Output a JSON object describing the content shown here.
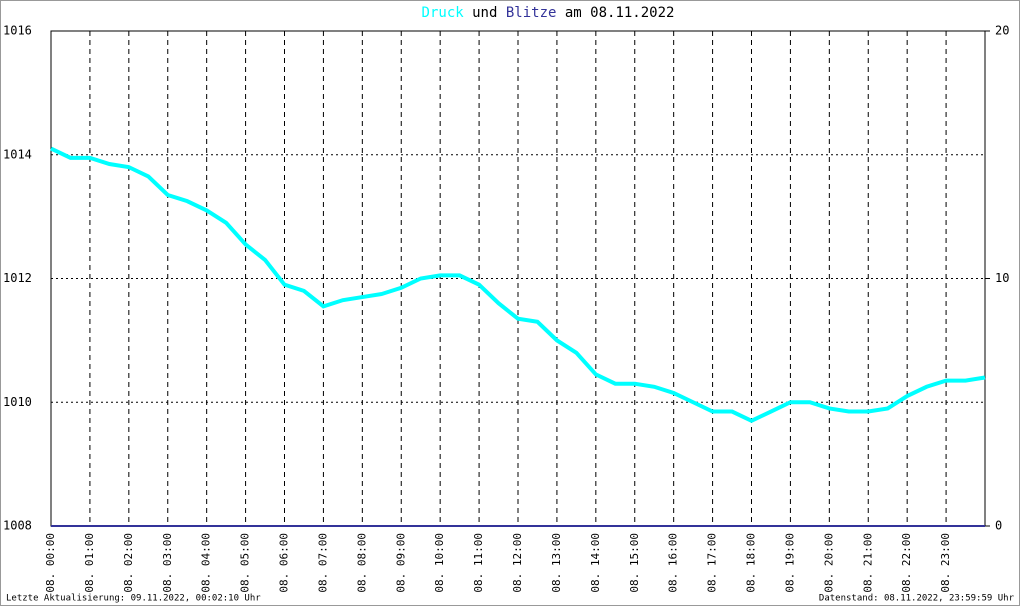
{
  "chart_data": {
    "type": "line",
    "title_parts": [
      "und",
      "am 08.11.2022"
    ],
    "xlim": [
      0,
      24
    ],
    "xticks": [
      {
        "value": 0,
        "label": "08. 00:00"
      },
      {
        "value": 1,
        "label": "08. 01:00"
      },
      {
        "value": 2,
        "label": "08. 02:00"
      },
      {
        "value": 3,
        "label": "08. 03:00"
      },
      {
        "value": 4,
        "label": "08. 04:00"
      },
      {
        "value": 5,
        "label": "08. 05:00"
      },
      {
        "value": 6,
        "label": "08. 06:00"
      },
      {
        "value": 7,
        "label": "08. 07:00"
      },
      {
        "value": 8,
        "label": "08. 08:00"
      },
      {
        "value": 9,
        "label": "08. 09:00"
      },
      {
        "value": 10,
        "label": "08. 10:00"
      },
      {
        "value": 11,
        "label": "08. 11:00"
      },
      {
        "value": 12,
        "label": "08. 12:00"
      },
      {
        "value": 13,
        "label": "08. 13:00"
      },
      {
        "value": 14,
        "label": "08. 14:00"
      },
      {
        "value": 15,
        "label": "08. 15:00"
      },
      {
        "value": 16,
        "label": "08. 16:00"
      },
      {
        "value": 17,
        "label": "08. 17:00"
      },
      {
        "value": 18,
        "label": "08. 18:00"
      },
      {
        "value": 19,
        "label": "08. 19:00"
      },
      {
        "value": 20,
        "label": "08. 20:00"
      },
      {
        "value": 21,
        "label": "08. 21:00"
      },
      {
        "value": 22,
        "label": "08. 22:00"
      },
      {
        "value": 23,
        "label": "08. 23:00"
      }
    ],
    "ylim": [
      1008,
      1016
    ],
    "yticks": [
      1008,
      1010,
      1012,
      1014,
      1016
    ],
    "y2lim": [
      0,
      20
    ],
    "y2ticks": [
      0,
      10,
      20
    ],
    "grid": true,
    "series": [
      {
        "name": "Druck",
        "color": "#00ffff",
        "x": [
          0,
          0.5,
          1,
          1.5,
          2,
          2.5,
          3,
          3.5,
          4,
          4.5,
          5,
          5.5,
          6,
          6.5,
          7,
          7.5,
          8,
          8.5,
          9,
          9.5,
          10,
          10.5,
          11,
          11.5,
          12,
          12.5,
          13,
          13.5,
          14,
          14.5,
          15,
          15.5,
          16,
          16.5,
          17,
          17.5,
          18,
          18.5,
          19,
          19.5,
          20,
          20.5,
          21,
          21.5,
          22,
          22.5,
          23,
          23.5,
          24
        ],
        "values": [
          1014.1,
          1013.95,
          1013.95,
          1013.85,
          1013.8,
          1013.65,
          1013.35,
          1013.25,
          1013.1,
          1012.9,
          1012.55,
          1012.3,
          1011.9,
          1011.8,
          1011.55,
          1011.65,
          1011.7,
          1011.75,
          1011.85,
          1012.0,
          1012.05,
          1012.05,
          1011.9,
          1011.6,
          1011.35,
          1011.3,
          1011.0,
          1010.8,
          1010.45,
          1010.3,
          1010.3,
          1010.25,
          1010.15,
          1010.0,
          1009.85,
          1009.85,
          1009.7,
          1009.85,
          1010.0,
          1010.0,
          1009.9,
          1009.85,
          1009.85,
          1009.9,
          1010.1,
          1010.25,
          1010.35,
          1010.35,
          1010.4
        ]
      },
      {
        "name": "Blitze",
        "color": "#333399",
        "axis": "y2",
        "x": [
          0,
          24
        ],
        "values": [
          0,
          0
        ]
      }
    ],
    "footer_left": "Letzte Aktualisierung: 09.11.2022, 00:02:10 Uhr",
    "footer_right": "Datenstand: 08.11.2022, 23:59:59 Uhr"
  }
}
